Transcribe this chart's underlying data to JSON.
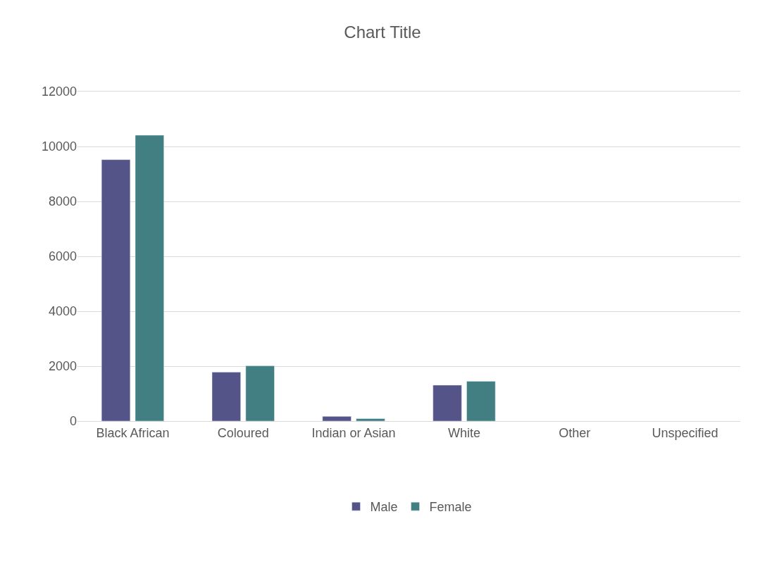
{
  "chart_data": {
    "type": "bar",
    "title": "Chart Title",
    "categories": [
      "Black African",
      "Coloured",
      "Indian or Asian",
      "White",
      "Other",
      "Unspecified"
    ],
    "series": [
      {
        "name": "Male",
        "color": "#545488",
        "values": [
          9520,
          1780,
          170,
          1310,
          null,
          null
        ]
      },
      {
        "name": "Female",
        "color": "#427f83",
        "values": [
          10410,
          2010,
          90,
          1450,
          null,
          null
        ]
      }
    ],
    "ylim": [
      0,
      12000
    ],
    "yticks": [
      0,
      2000,
      4000,
      6000,
      8000,
      10000,
      12000
    ],
    "grid": "y",
    "legend": "bottom"
  }
}
